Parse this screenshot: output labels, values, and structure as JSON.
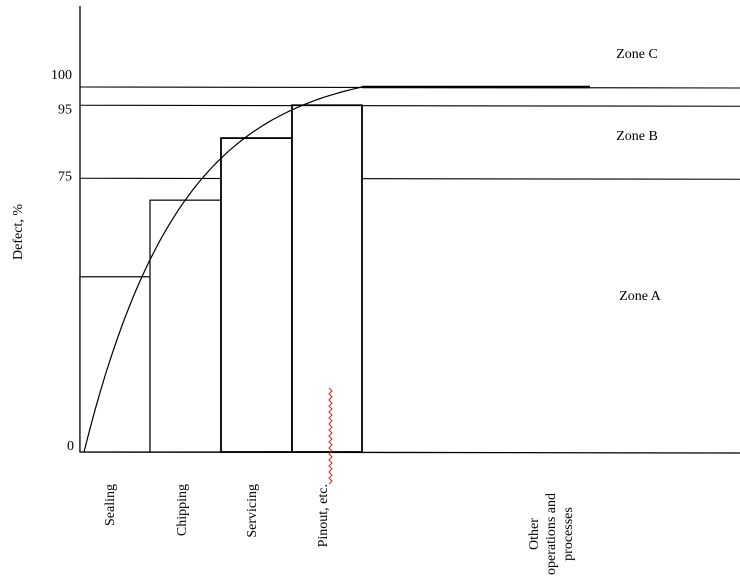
{
  "chart_data": {
    "type": "bar",
    "title": "",
    "ylabel": "Defect, %",
    "xlabel": "",
    "ylim": [
      0,
      100
    ],
    "yticks": [
      0,
      75,
      95,
      100
    ],
    "categories": [
      "Sealing",
      "Chipping",
      "Servicing",
      "Pinout, etc.",
      "Other operations and processes"
    ],
    "values": [
      48,
      69,
      86,
      95,
      100
    ],
    "cumulative_curve": [
      {
        "category": "Sealing",
        "value": 48
      },
      {
        "category": "Chipping",
        "value": 69
      },
      {
        "category": "Servicing",
        "value": 86
      },
      {
        "category": "Pinout, etc.",
        "value": 95
      },
      {
        "category": "Other operations and processes",
        "value": 100
      }
    ],
    "zones": [
      {
        "label": "Zone A",
        "from": 0,
        "to": 75
      },
      {
        "label": "Zone B",
        "from": 75,
        "to": 95
      },
      {
        "label": "Zone C",
        "from": 95,
        "to": 100
      }
    ],
    "category_label_lines": [
      [
        "Sealing"
      ],
      [
        "Chipping"
      ],
      [
        "Servicing"
      ],
      [
        "Pinout, etc."
      ],
      [
        "Other",
        "operations and",
        "processes"
      ]
    ],
    "grid": false,
    "legend": "none",
    "colors": {
      "line": "#000000",
      "bar_fill": "#ffffff",
      "squiggle": "#d62020"
    }
  }
}
